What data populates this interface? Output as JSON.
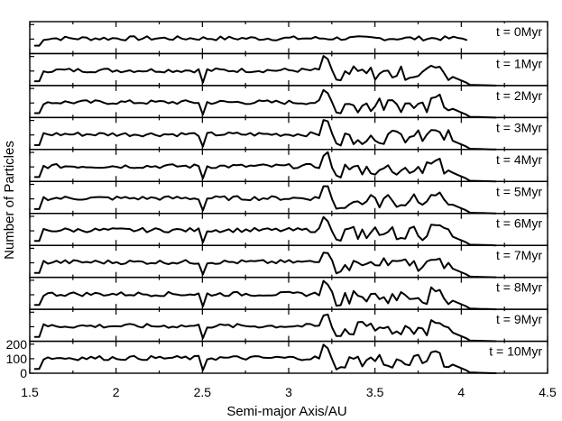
{
  "chart_data": {
    "type": "line",
    "xlabel": "Semi-major Axis/AU",
    "ylabel": "Number of Particles",
    "xlim": [
      1.5,
      4.5
    ],
    "ylim": [
      0,
      220
    ],
    "x_ticks": [
      1.5,
      2,
      2.5,
      3,
      3.5,
      4,
      4.5
    ],
    "x_tick_labels": [
      "1.5",
      "2",
      "2.5",
      "3",
      "3.5",
      "4",
      "4.5"
    ],
    "y_ticks": [
      0,
      100,
      200
    ],
    "y_tick_labels": [
      "0",
      "100",
      "200"
    ],
    "grid": false,
    "layout": "stacked panels sharing x-axis",
    "panels": [
      {
        "label": "t = 0Myr",
        "x_range": [
          1.53,
          4.03
        ]
      },
      {
        "label": "t = 1Myr",
        "x_range": [
          1.53,
          4.2
        ]
      },
      {
        "label": "t = 2Myr",
        "x_range": [
          1.53,
          4.2
        ]
      },
      {
        "label": "t = 3Myr",
        "x_range": [
          1.53,
          4.2
        ]
      },
      {
        "label": "t = 4Myr",
        "x_range": [
          1.53,
          4.2
        ]
      },
      {
        "label": "t = 5Myr",
        "x_range": [
          1.53,
          4.2
        ]
      },
      {
        "label": "t = 6Myr",
        "x_range": [
          1.53,
          4.2
        ]
      },
      {
        "label": "t = 7Myr",
        "x_range": [
          1.53,
          4.2
        ]
      },
      {
        "label": "t = 8Myr",
        "x_range": [
          1.53,
          4.2
        ]
      },
      {
        "label": "t = 9Myr",
        "x_range": [
          1.53,
          4.2
        ]
      },
      {
        "label": "t = 10Myr",
        "x_range": [
          1.53,
          4.2
        ]
      }
    ]
  }
}
